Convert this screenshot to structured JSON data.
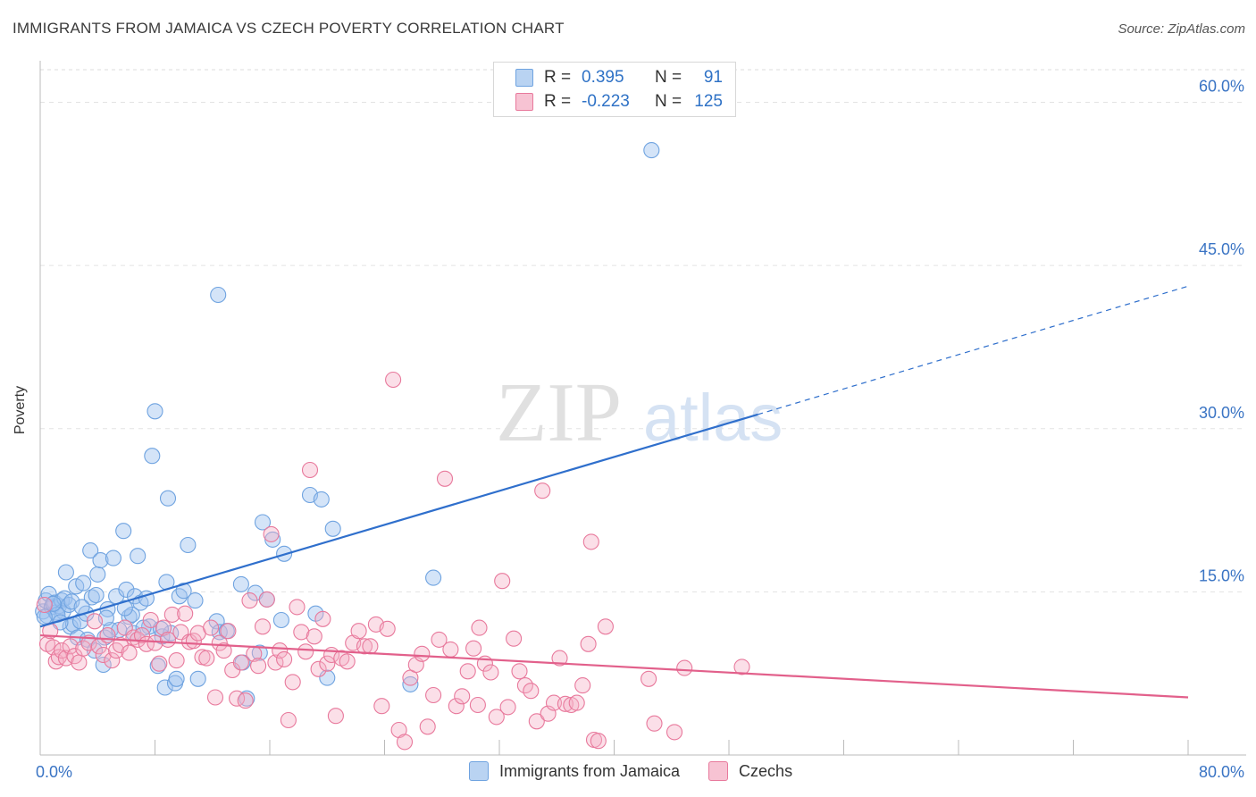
{
  "header": {
    "title": "IMMIGRANTS FROM JAMAICA VS CZECH POVERTY CORRELATION CHART",
    "source": "Source: ZipAtlas.com"
  },
  "watermark": {
    "zip": "ZIP",
    "atlas": "atlas"
  },
  "legend": {
    "r_label": "R =",
    "n_label": "N =",
    "rows": [
      {
        "name": "Immigrants from Jamaica",
        "r": "0.395",
        "n": "91",
        "color": "#6fa3e0",
        "fill": "#b9d3f2"
      },
      {
        "name": "Czechs",
        "r": "-0.223",
        "n": "125",
        "color": "#e8799c",
        "fill": "#f7c3d3"
      }
    ]
  },
  "chart_data": {
    "type": "scatter",
    "title": "IMMIGRANTS FROM JAMAICA VS CZECH POVERTY CORRELATION CHART",
    "xlabel": "",
    "ylabel": "Poverty",
    "xlim": [
      0,
      80
    ],
    "ylim": [
      0,
      63
    ],
    "x_tick_labels": [
      "0.0%",
      "80.0%"
    ],
    "y_ticks": [
      15,
      30,
      45,
      60
    ],
    "y_tick_labels": [
      "15.0%",
      "30.0%",
      "45.0%",
      "60.0%"
    ],
    "grid": true,
    "series": [
      {
        "name": "Immigrants from Jamaica",
        "color": "#6fa3e0",
        "trend": {
          "x0": 0,
          "y0": 11.8,
          "x1": 50,
          "y1": 31.3,
          "dash_to_x": 80,
          "dash_to_y": 43.1
        },
        "points": [
          [
            0.2,
            13.2
          ],
          [
            0.4,
            14.2
          ],
          [
            0.5,
            12.8
          ],
          [
            0.6,
            14.8
          ],
          [
            0.8,
            13.6
          ],
          [
            1.0,
            14.0
          ],
          [
            1.1,
            13.1
          ],
          [
            1.3,
            13.7
          ],
          [
            1.5,
            14.2
          ],
          [
            1.6,
            13.2
          ],
          [
            1.7,
            14.4
          ],
          [
            1.8,
            16.8
          ],
          [
            2.0,
            13.8
          ],
          [
            2.1,
            11.8
          ],
          [
            2.3,
            12.0
          ],
          [
            2.5,
            15.5
          ],
          [
            2.6,
            10.8
          ],
          [
            2.8,
            12.3
          ],
          [
            3.0,
            15.8
          ],
          [
            3.2,
            13.0
          ],
          [
            3.3,
            10.6
          ],
          [
            3.5,
            18.8
          ],
          [
            3.6,
            14.5
          ],
          [
            3.8,
            9.6
          ],
          [
            4.0,
            16.6
          ],
          [
            4.2,
            17.9
          ],
          [
            4.4,
            8.3
          ],
          [
            4.5,
            10.8
          ],
          [
            4.7,
            13.4
          ],
          [
            4.9,
            11.5
          ],
          [
            5.1,
            18.1
          ],
          [
            5.3,
            14.6
          ],
          [
            5.5,
            11.5
          ],
          [
            5.8,
            20.6
          ],
          [
            6.0,
            15.2
          ],
          [
            6.2,
            12.7
          ],
          [
            6.4,
            12.9
          ],
          [
            6.6,
            14.6
          ],
          [
            6.8,
            18.3
          ],
          [
            7.0,
            14.0
          ],
          [
            7.4,
            14.4
          ],
          [
            7.6,
            11.8
          ],
          [
            7.8,
            27.5
          ],
          [
            8.0,
            31.6
          ],
          [
            8.2,
            8.2
          ],
          [
            8.5,
            10.9
          ],
          [
            8.7,
            6.2
          ],
          [
            8.8,
            15.9
          ],
          [
            8.9,
            23.6
          ],
          [
            9.1,
            11.2
          ],
          [
            9.4,
            6.6
          ],
          [
            9.5,
            7.0
          ],
          [
            9.7,
            14.6
          ],
          [
            10.0,
            15.1
          ],
          [
            10.3,
            19.3
          ],
          [
            10.8,
            14.2
          ],
          [
            11.0,
            7.0
          ],
          [
            12.4,
            42.3
          ],
          [
            12.3,
            12.3
          ],
          [
            12.5,
            11.3
          ],
          [
            13.0,
            11.4
          ],
          [
            14.0,
            15.7
          ],
          [
            14.1,
            8.5
          ],
          [
            14.4,
            5.2
          ],
          [
            15.0,
            14.9
          ],
          [
            15.3,
            9.4
          ],
          [
            15.5,
            21.4
          ],
          [
            15.8,
            14.3
          ],
          [
            16.2,
            19.8
          ],
          [
            16.8,
            12.4
          ],
          [
            17.0,
            18.5
          ],
          [
            18.8,
            23.9
          ],
          [
            19.2,
            13.0
          ],
          [
            19.6,
            23.5
          ],
          [
            20.0,
            7.1
          ],
          [
            20.4,
            20.8
          ],
          [
            27.4,
            16.3
          ],
          [
            25.8,
            6.5
          ],
          [
            42.6,
            55.6
          ],
          [
            1.2,
            12.9
          ],
          [
            0.9,
            13.9
          ],
          [
            2.2,
            14.1
          ],
          [
            3.9,
            14.7
          ],
          [
            5.9,
            13.5
          ],
          [
            6.5,
            11.2
          ],
          [
            2.9,
            13.6
          ],
          [
            7.2,
            11.7
          ],
          [
            1.4,
            12.2
          ],
          [
            0.3,
            12.7
          ],
          [
            8.4,
            11.6
          ],
          [
            4.6,
            12.6
          ]
        ]
      },
      {
        "name": "Czechs",
        "color": "#e8799c",
        "trend": {
          "x0": 0,
          "y0": 11.0,
          "x1": 80,
          "y1": 5.3
        },
        "points": [
          [
            0.3,
            13.8
          ],
          [
            0.5,
            10.2
          ],
          [
            0.7,
            11.4
          ],
          [
            0.9,
            9.9
          ],
          [
            1.1,
            8.6
          ],
          [
            1.3,
            9.0
          ],
          [
            1.5,
            9.6
          ],
          [
            1.8,
            8.9
          ],
          [
            2.1,
            10.0
          ],
          [
            2.4,
            9.1
          ],
          [
            2.7,
            8.5
          ],
          [
            3.0,
            9.8
          ],
          [
            3.4,
            10.3
          ],
          [
            3.8,
            12.3
          ],
          [
            4.1,
            10.0
          ],
          [
            4.4,
            9.2
          ],
          [
            4.7,
            11.0
          ],
          [
            5.0,
            8.7
          ],
          [
            5.3,
            9.6
          ],
          [
            5.6,
            10.1
          ],
          [
            5.9,
            11.7
          ],
          [
            6.2,
            9.4
          ],
          [
            6.5,
            10.8
          ],
          [
            6.8,
            10.6
          ],
          [
            7.1,
            11.0
          ],
          [
            7.4,
            10.2
          ],
          [
            7.7,
            12.4
          ],
          [
            8.0,
            10.3
          ],
          [
            8.3,
            8.4
          ],
          [
            8.6,
            11.7
          ],
          [
            8.9,
            10.6
          ],
          [
            9.2,
            12.9
          ],
          [
            9.5,
            8.7
          ],
          [
            9.8,
            11.3
          ],
          [
            10.1,
            13.0
          ],
          [
            10.4,
            10.4
          ],
          [
            10.7,
            10.5
          ],
          [
            11.0,
            11.2
          ],
          [
            11.3,
            9.0
          ],
          [
            11.6,
            8.9
          ],
          [
            11.9,
            11.7
          ],
          [
            12.2,
            5.3
          ],
          [
            12.5,
            10.3
          ],
          [
            12.8,
            9.6
          ],
          [
            13.1,
            11.4
          ],
          [
            13.4,
            7.8
          ],
          [
            13.7,
            5.2
          ],
          [
            14.0,
            8.5
          ],
          [
            14.3,
            5.0
          ],
          [
            14.6,
            14.2
          ],
          [
            14.9,
            9.3
          ],
          [
            15.2,
            8.2
          ],
          [
            15.5,
            11.8
          ],
          [
            15.8,
            14.3
          ],
          [
            16.1,
            20.3
          ],
          [
            16.4,
            8.5
          ],
          [
            16.7,
            9.6
          ],
          [
            17.0,
            8.8
          ],
          [
            17.3,
            3.2
          ],
          [
            17.6,
            6.7
          ],
          [
            17.9,
            13.6
          ],
          [
            18.2,
            11.3
          ],
          [
            18.5,
            9.5
          ],
          [
            18.8,
            26.2
          ],
          [
            19.1,
            10.9
          ],
          [
            19.4,
            7.9
          ],
          [
            19.7,
            12.5
          ],
          [
            20.0,
            8.4
          ],
          [
            20.3,
            9.2
          ],
          [
            20.6,
            3.6
          ],
          [
            21.0,
            8.9
          ],
          [
            21.4,
            8.6
          ],
          [
            21.8,
            10.3
          ],
          [
            22.2,
            11.4
          ],
          [
            22.6,
            10.0
          ],
          [
            23.0,
            10.0
          ],
          [
            23.4,
            12.0
          ],
          [
            23.8,
            4.5
          ],
          [
            24.2,
            11.6
          ],
          [
            24.6,
            34.5
          ],
          [
            25.0,
            2.3
          ],
          [
            25.4,
            1.2
          ],
          [
            25.8,
            7.1
          ],
          [
            26.2,
            8.3
          ],
          [
            26.6,
            9.3
          ],
          [
            27.0,
            2.6
          ],
          [
            27.4,
            5.5
          ],
          [
            27.8,
            10.6
          ],
          [
            28.2,
            25.4
          ],
          [
            28.6,
            9.7
          ],
          [
            29.0,
            4.5
          ],
          [
            29.4,
            5.4
          ],
          [
            29.8,
            7.7
          ],
          [
            30.2,
            9.8
          ],
          [
            30.6,
            11.7
          ],
          [
            31.0,
            8.4
          ],
          [
            31.4,
            7.6
          ],
          [
            31.8,
            3.5
          ],
          [
            32.2,
            16.0
          ],
          [
            32.6,
            4.4
          ],
          [
            33.0,
            10.7
          ],
          [
            33.4,
            7.7
          ],
          [
            33.8,
            6.4
          ],
          [
            34.2,
            5.9
          ],
          [
            34.6,
            3.1
          ],
          [
            35.0,
            24.3
          ],
          [
            35.4,
            3.8
          ],
          [
            35.8,
            4.8
          ],
          [
            36.2,
            8.9
          ],
          [
            36.6,
            4.7
          ],
          [
            37.0,
            4.6
          ],
          [
            37.4,
            4.8
          ],
          [
            37.8,
            6.4
          ],
          [
            38.2,
            10.2
          ],
          [
            38.6,
            1.4
          ],
          [
            38.9,
            1.3
          ],
          [
            38.4,
            19.6
          ],
          [
            39.4,
            11.8
          ],
          [
            42.8,
            2.9
          ],
          [
            42.4,
            7.0
          ],
          [
            44.2,
            2.1
          ],
          [
            44.9,
            8.0
          ],
          [
            48.9,
            8.1
          ],
          [
            30.5,
            4.6
          ]
        ]
      }
    ]
  }
}
